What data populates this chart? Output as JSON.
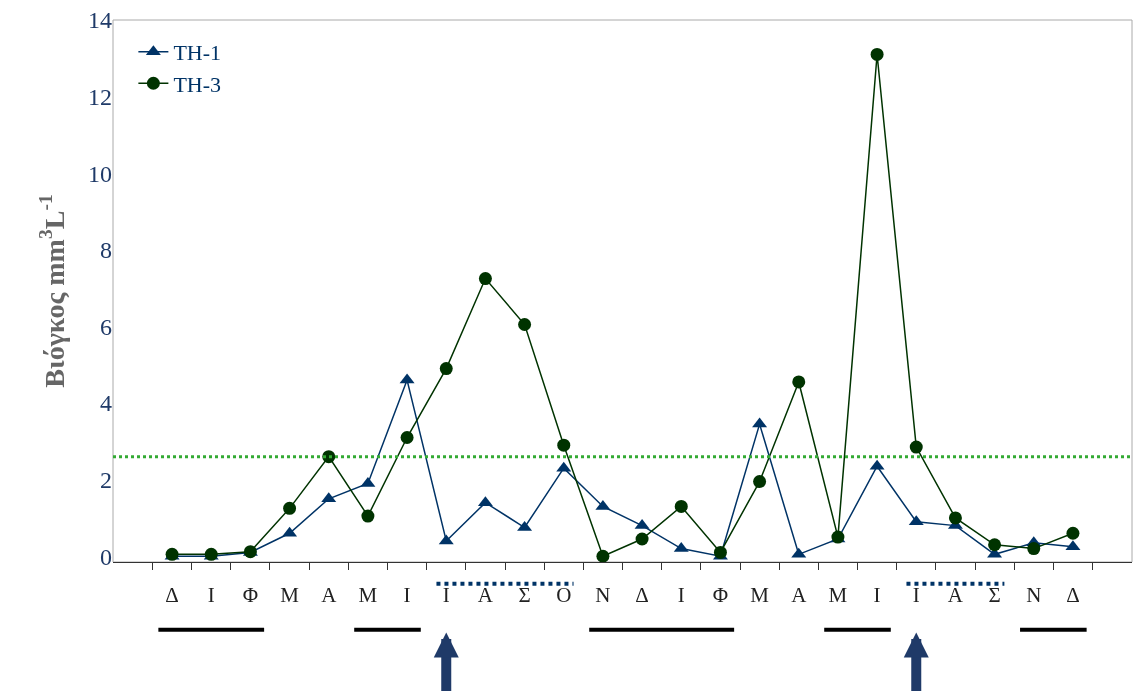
{
  "chart_data": {
    "type": "line",
    "ylabel": "Βιόγκος mm$^{3}$L$^{-1}$",
    "categories": [
      "Δ",
      "Ι",
      "Φ",
      "Μ",
      "Α",
      "Μ",
      "Ι",
      "Ι",
      "Α",
      "Σ",
      "Ο",
      "Ν",
      "Δ",
      "Ι",
      "Φ",
      "Μ",
      "Α",
      "Μ",
      "Ι",
      "Ι",
      "Α",
      "Σ",
      "Ν",
      "Δ"
    ],
    "series": [
      {
        "name": "TH-1",
        "color": "#003366",
        "marker": "triangle",
        "values": [
          0.0,
          0.0,
          0.1,
          0.6,
          1.5,
          1.9,
          4.6,
          0.4,
          1.4,
          0.75,
          2.3,
          1.3,
          0.8,
          0.2,
          0.0,
          3.45,
          0.05,
          0.45,
          2.35,
          0.9,
          0.8,
          0.05,
          0.35,
          0.25
        ]
      },
      {
        "name": "TH-3",
        "color": "#003300",
        "marker": "circle",
        "values": [
          0.05,
          0.05,
          0.12,
          1.25,
          2.6,
          1.05,
          3.1,
          4.9,
          7.25,
          6.05,
          2.9,
          0.0,
          0.45,
          1.3,
          0.1,
          1.95,
          4.55,
          0.5,
          13.1,
          2.85,
          1.0,
          0.3,
          0.2,
          0.6
        ]
      }
    ],
    "ylim": [
      -0.15,
      14
    ],
    "yticks": [
      0,
      2,
      4,
      6,
      8,
      10,
      12,
      14
    ],
    "ref_lines": [
      {
        "axis": "y",
        "value": 2.6,
        "color": "#33aa33",
        "line_style": "dotted"
      }
    ],
    "grid": false,
    "legend": "top left",
    "line_style": "solid"
  }
}
